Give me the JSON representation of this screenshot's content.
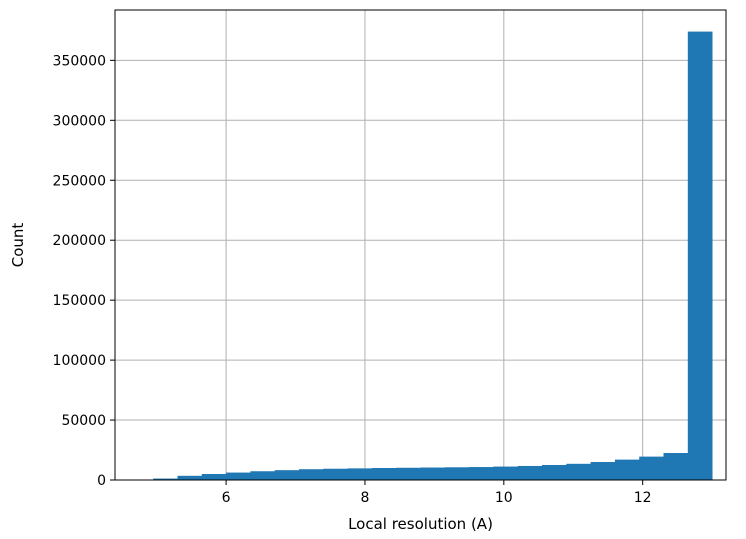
{
  "chart_data": {
    "type": "bar",
    "subtype": "histogram",
    "title": "",
    "xlabel": "Local resolution (A)",
    "ylabel": "Count",
    "xlim": [
      4.4,
      13.2
    ],
    "ylim": [
      0,
      392000
    ],
    "x_ticks": [
      6,
      8,
      10,
      12
    ],
    "y_ticks": [
      0,
      50000,
      100000,
      150000,
      200000,
      250000,
      300000,
      350000
    ],
    "grid": true,
    "bar_color": "#1f77b4",
    "bins": [
      {
        "x0": 4.6,
        "x1": 4.95,
        "value": 200
      },
      {
        "x0": 4.95,
        "x1": 5.3,
        "value": 1200
      },
      {
        "x0": 5.3,
        "x1": 5.65,
        "value": 3500
      },
      {
        "x0": 5.65,
        "x1": 6.0,
        "value": 5000
      },
      {
        "x0": 6.0,
        "x1": 6.35,
        "value": 6200
      },
      {
        "x0": 6.35,
        "x1": 6.7,
        "value": 7300
      },
      {
        "x0": 6.7,
        "x1": 7.05,
        "value": 8200
      },
      {
        "x0": 7.05,
        "x1": 7.4,
        "value": 9000
      },
      {
        "x0": 7.4,
        "x1": 7.75,
        "value": 9400
      },
      {
        "x0": 7.75,
        "x1": 8.1,
        "value": 9700
      },
      {
        "x0": 8.1,
        "x1": 8.45,
        "value": 10000
      },
      {
        "x0": 8.45,
        "x1": 8.8,
        "value": 10200
      },
      {
        "x0": 8.8,
        "x1": 9.15,
        "value": 10400
      },
      {
        "x0": 9.15,
        "x1": 9.5,
        "value": 10600
      },
      {
        "x0": 9.5,
        "x1": 9.85,
        "value": 10800
      },
      {
        "x0": 9.85,
        "x1": 10.2,
        "value": 11200
      },
      {
        "x0": 10.2,
        "x1": 10.55,
        "value": 11700
      },
      {
        "x0": 10.55,
        "x1": 10.9,
        "value": 12500
      },
      {
        "x0": 10.9,
        "x1": 11.25,
        "value": 13500
      },
      {
        "x0": 11.25,
        "x1": 11.6,
        "value": 15000
      },
      {
        "x0": 11.6,
        "x1": 11.95,
        "value": 17000
      },
      {
        "x0": 11.95,
        "x1": 12.3,
        "value": 19500
      },
      {
        "x0": 12.3,
        "x1": 12.65,
        "value": 22500
      },
      {
        "x0": 12.65,
        "x1": 13.0,
        "value": 374000
      }
    ]
  }
}
